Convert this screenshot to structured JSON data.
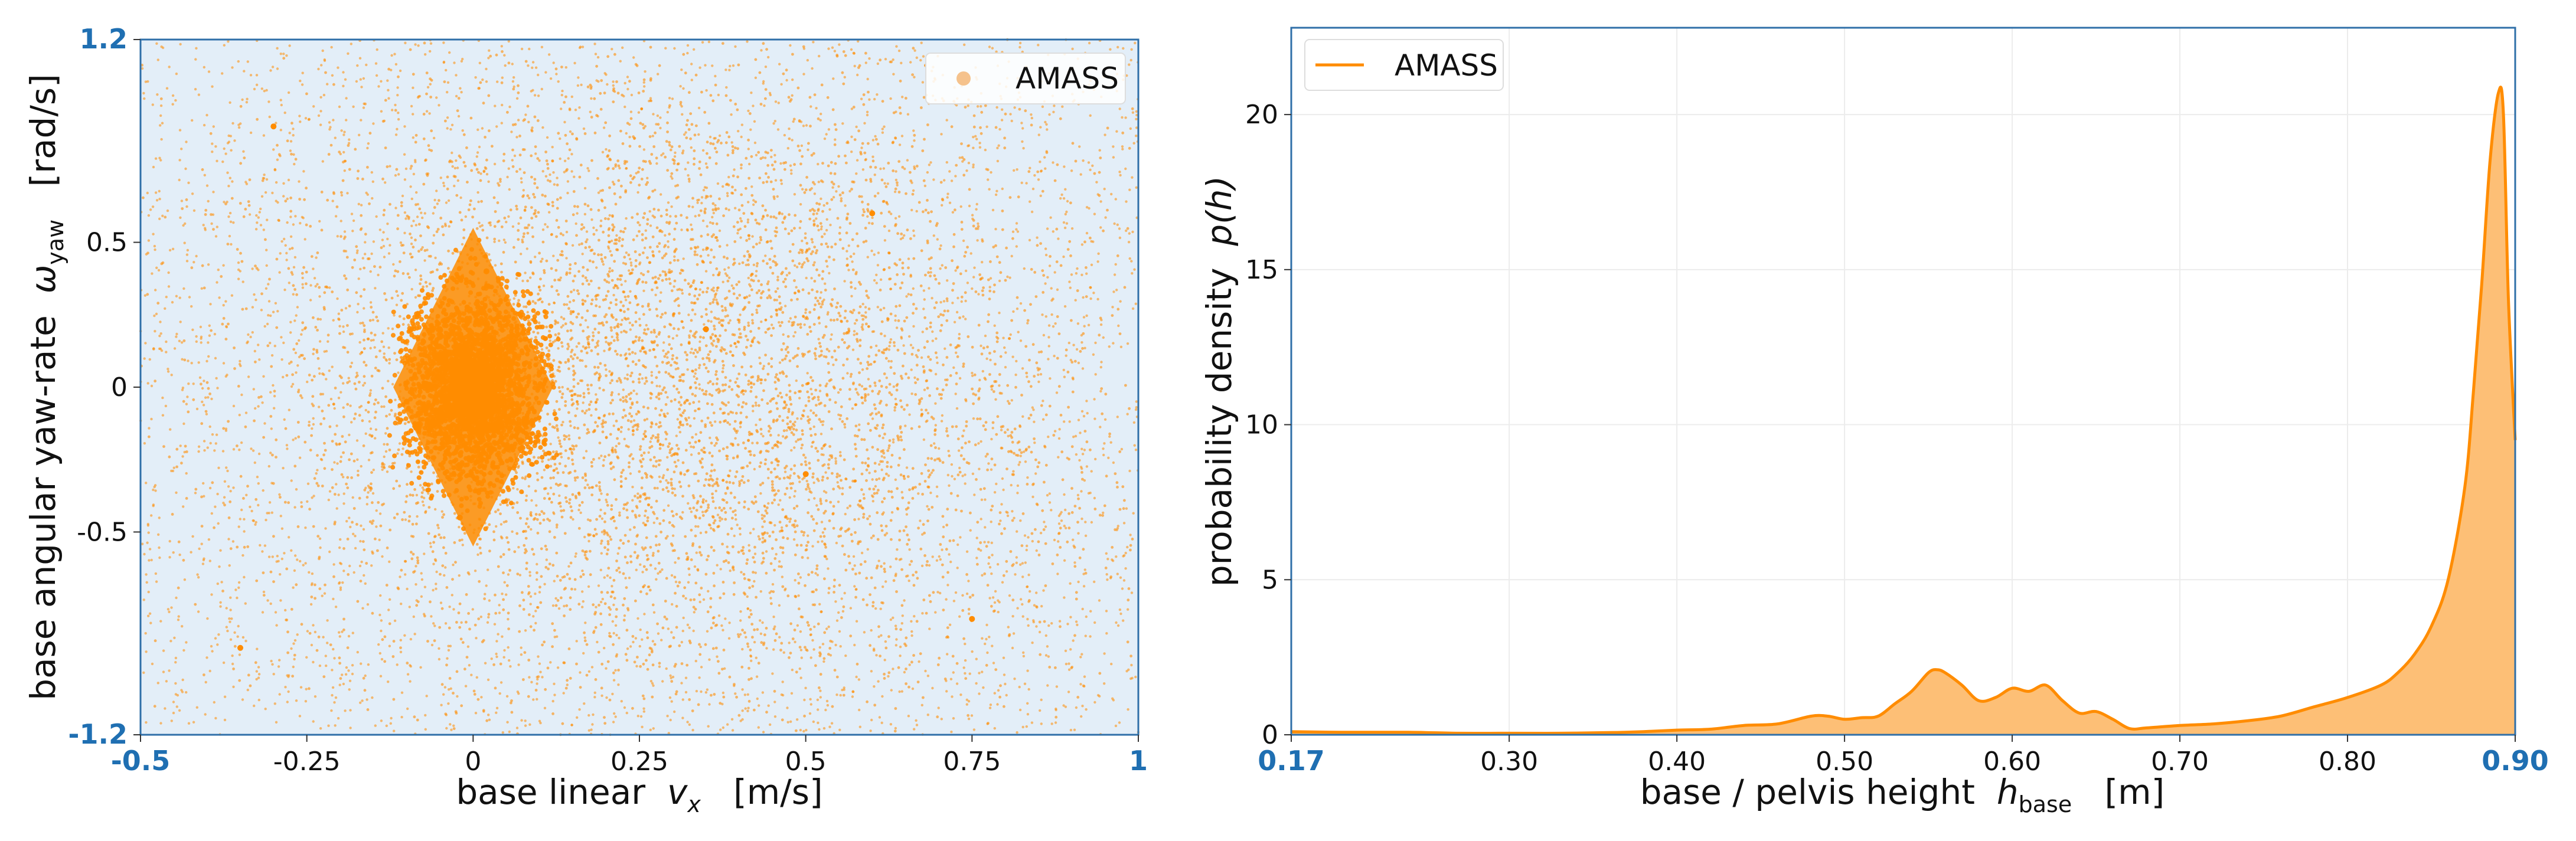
{
  "chart_data": [
    {
      "type": "scatter",
      "xlabel": {
        "main": "base linear  ",
        "var": "v",
        "sub": "x",
        "unit": "   [m/s]"
      },
      "ylabel": {
        "main": "base angular yaw-rate  ",
        "var": "ω",
        "sub": "yaw",
        "unit": "   [rad/s]"
      },
      "xlim": [
        -0.5,
        1.0
      ],
      "ylim": [
        -1.2,
        1.2
      ],
      "xticks": [
        "-0.5",
        "-0.25",
        "0",
        "0.25",
        "0.5",
        "0.75",
        "1"
      ],
      "yticks": [
        "-1.2",
        "-0.5",
        "0",
        "0.5",
        "1.2"
      ],
      "xtick_values": [
        -0.5,
        -0.25,
        0,
        0.25,
        0.5,
        0.75,
        1.0
      ],
      "ytick_values": [
        -1.2,
        -0.5,
        0,
        0.5,
        1.2
      ],
      "grid": false,
      "legend": {
        "position": "top-right",
        "entries": [
          "AMASS"
        ]
      },
      "series": [
        {
          "name": "AMASS",
          "color": "#ff8c00",
          "description_points": [
            {
              "x": 0.0,
              "y": 0.0
            },
            {
              "x": -0.05,
              "y": 0.2
            },
            {
              "x": 0.05,
              "y": -0.2
            },
            {
              "x": 0.02,
              "y": 0.4
            },
            {
              "x": -0.02,
              "y": -0.45
            },
            {
              "x": 0.1,
              "y": 0.05
            },
            {
              "x": -0.1,
              "y": -0.05
            },
            {
              "x": 0.35,
              "y": 0.2
            },
            {
              "x": 0.5,
              "y": -0.3
            },
            {
              "x": 0.6,
              "y": 0.6
            },
            {
              "x": 0.75,
              "y": -0.8
            },
            {
              "x": -0.3,
              "y": 0.9
            },
            {
              "x": -0.35,
              "y": -0.9
            }
          ]
        }
      ]
    },
    {
      "type": "area",
      "xlabel": {
        "main": "base / pelvis height  ",
        "var": "h",
        "sub": "base",
        "unit": "   [m]"
      },
      "ylabel": {
        "main": "probability density  ",
        "var": "p(h)",
        "sub": "",
        "unit": ""
      },
      "xlim": [
        0.17,
        0.9
      ],
      "ylim": [
        0,
        22.8
      ],
      "xticks": [
        "0.17",
        "0.30",
        "0.40",
        "0.50",
        "0.60",
        "0.70",
        "0.80",
        "0.90"
      ],
      "xtick_values": [
        0.17,
        0.3,
        0.4,
        0.5,
        0.6,
        0.7,
        0.8,
        0.9
      ],
      "yticks": [
        "0",
        "5",
        "10",
        "15",
        "20"
      ],
      "ytick_values": [
        0,
        5,
        10,
        15,
        20
      ],
      "grid": true,
      "legend": {
        "position": "top-left",
        "entries": [
          "AMASS"
        ]
      },
      "series": [
        {
          "name": "AMASS",
          "color": "#ff8c00",
          "fill": "#fdbf76",
          "x": [
            0.17,
            0.2,
            0.24,
            0.27,
            0.3,
            0.33,
            0.36,
            0.38,
            0.4,
            0.42,
            0.44,
            0.46,
            0.48,
            0.49,
            0.5,
            0.51,
            0.52,
            0.53,
            0.54,
            0.55,
            0.555,
            0.56,
            0.57,
            0.58,
            0.59,
            0.6,
            0.61,
            0.62,
            0.63,
            0.64,
            0.65,
            0.66,
            0.67,
            0.68,
            0.7,
            0.72,
            0.74,
            0.76,
            0.78,
            0.8,
            0.82,
            0.83,
            0.84,
            0.85,
            0.86,
            0.87,
            0.875,
            0.88,
            0.885,
            0.89,
            0.893,
            0.896,
            0.9
          ],
          "y": [
            0.1,
            0.08,
            0.08,
            0.05,
            0.05,
            0.05,
            0.07,
            0.1,
            0.15,
            0.18,
            0.3,
            0.35,
            0.6,
            0.6,
            0.5,
            0.55,
            0.6,
            1.0,
            1.4,
            2.0,
            2.1,
            2.0,
            1.6,
            1.1,
            1.2,
            1.5,
            1.4,
            1.6,
            1.1,
            0.7,
            0.75,
            0.5,
            0.2,
            0.22,
            0.3,
            0.35,
            0.45,
            0.6,
            0.9,
            1.2,
            1.6,
            2.0,
            2.6,
            3.5,
            5.0,
            8.0,
            11.0,
            14.5,
            18.5,
            20.7,
            20.0,
            14.0,
            9.5
          ]
        }
      ]
    }
  ]
}
